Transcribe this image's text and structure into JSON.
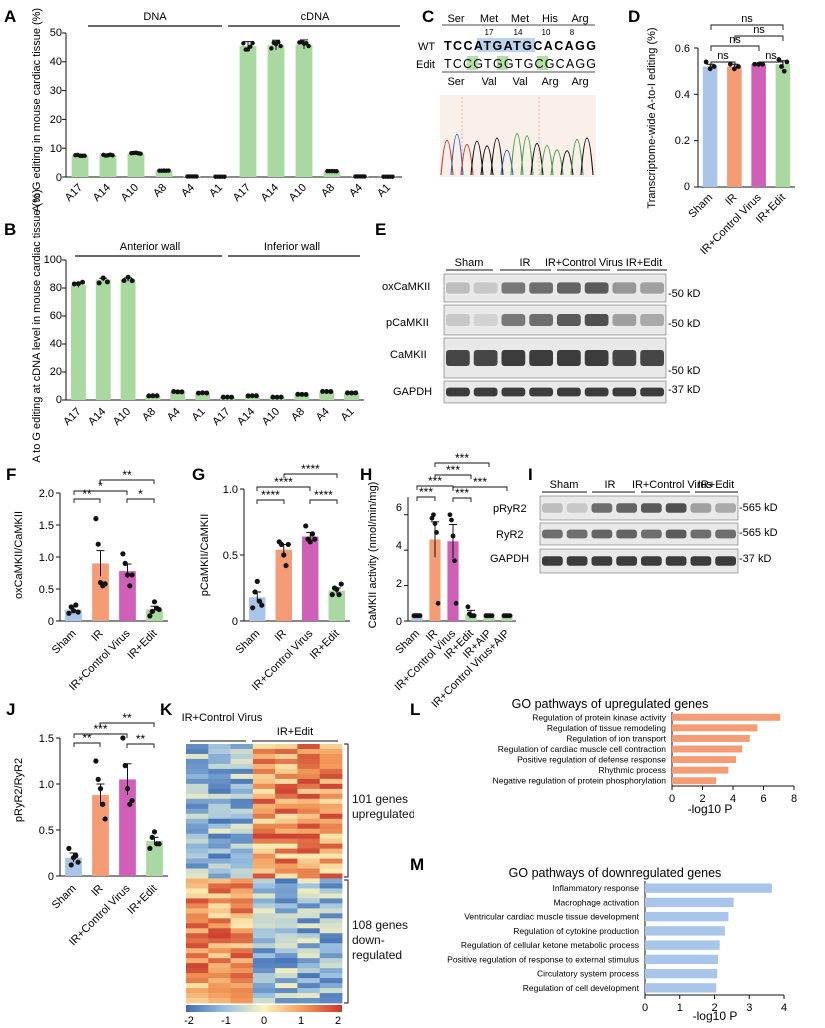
{
  "panel_letters": {
    "A": "A",
    "B": "B",
    "C": "C",
    "D": "D",
    "E": "E",
    "F": "F",
    "G": "G",
    "H": "H",
    "I": "I",
    "J": "J",
    "K": "K",
    "L": "L",
    "M": "M"
  },
  "colors": {
    "green": "#a9d9a0",
    "orange": "#f39c76",
    "purple": "#cf5fb7",
    "blue": "#a9c5ea",
    "red_heat": "#c8372d",
    "blue_heat": "#3f6db3"
  },
  "panel_A": {
    "ylabel": "A to G editing in mouse cardiac tissue (%)",
    "group_labels": [
      "DNA",
      "cDNA"
    ],
    "yticks": [
      "0",
      "10",
      "20",
      "30",
      "40",
      "50"
    ]
  },
  "panel_B": {
    "ylabel": "A to G editing at cDNA level in mouse cardiac tissue (%)",
    "group_labels": [
      "Anterior wall",
      "Inferior wall"
    ],
    "yticks": [
      "0",
      "20",
      "40",
      "60",
      "80",
      "100"
    ]
  },
  "panel_C": {
    "top_aa": [
      "Ser",
      "Met",
      "Met",
      "His",
      "Arg"
    ],
    "top_nums": [
      "17",
      "14",
      "10",
      "8"
    ],
    "wt_label": "WT",
    "wt_seq": "TCCATGATGCACAGG",
    "edit_label": "Edit",
    "edit_seq": "TCCGTGGTGCGCAGG",
    "bottom_aa": [
      "Ser",
      "Val",
      "Val",
      "Arg",
      "Arg"
    ]
  },
  "panel_D": {
    "ylabel": "Transcriptome-wide A-to-I editing (%)",
    "yticks": [
      "0",
      "0.2",
      "0.4",
      "0.6"
    ],
    "ns": "ns"
  },
  "panel_E": {
    "groups": [
      "Sham",
      "IR",
      "IR+Control Virus",
      "IR+Edit"
    ],
    "rows": [
      "oxCaMKII",
      "pCaMKII",
      "CaMKII",
      "GAPDH"
    ],
    "markers": [
      "-50 kD",
      "-50 kD",
      "-50 kD",
      "-37 kD"
    ]
  },
  "panel_F": {
    "ylabel": "oxCaMKII/CaMKII",
    "yticks": [
      "0",
      "0.5",
      "1.0",
      "1.5",
      "2.0"
    ]
  },
  "panel_G": {
    "ylabel": "pCaMKII/CaMKII",
    "yticks": [
      "0",
      "0.5",
      "1.0"
    ]
  },
  "panel_H": {
    "ylabel": "CaMKII activity (nmol/min/mg)",
    "yticks": [
      "0",
      "2",
      "4",
      "6"
    ],
    "cats": [
      "Sham",
      "IR",
      "IR+Control Virus",
      "IR+Edit",
      "IR+AIP",
      "IR+Control Virus+AIP"
    ]
  },
  "panel_I": {
    "groups": [
      "Sham",
      "IR",
      "IR+Control Virus",
      "IR+Edit"
    ],
    "rows": [
      "pRyR2",
      "RyR2",
      "GAPDH"
    ],
    "markers": [
      "-565 kD",
      "-565 kD",
      "-37 kD"
    ]
  },
  "panel_J": {
    "ylabel": "pRyR2/RyR2",
    "yticks": [
      "0",
      "0.5",
      "1.0",
      "1.5"
    ]
  },
  "panel_K": {
    "col_groups": [
      "IR+Control Virus",
      "IR+Edit"
    ],
    "up_label": "101 genes upregulated",
    "down_label": "108 genes down-regulated",
    "scale_ticks": [
      "-2",
      "-1",
      "0",
      "1",
      "2"
    ]
  },
  "panel_L": {
    "title": "GO pathways of upregulated genes",
    "xlabel": "-log10 P",
    "xticks": [
      "0",
      "2",
      "4",
      "6",
      "8"
    ]
  },
  "panel_M": {
    "title": "GO pathways of downregulated genes",
    "xlabel": "-log10 P",
    "xticks": [
      "0",
      "1",
      "2",
      "3",
      "4"
    ]
  },
  "chart_data": [
    {
      "id": "A",
      "type": "bar",
      "categories": [
        "A17",
        "A14",
        "A10",
        "A8",
        "A4",
        "A1",
        "A17",
        "A14",
        "A10",
        "A8",
        "A4",
        "A1"
      ],
      "values": [
        7.5,
        7.6,
        8.2,
        2.2,
        0.2,
        0.1,
        45.5,
        45.8,
        46.0,
        2.0,
        0.2,
        0.1
      ],
      "ylim": [
        0,
        50
      ]
    },
    {
      "id": "B",
      "type": "bar",
      "categories": [
        "A17",
        "A14",
        "A10",
        "A8",
        "A4",
        "A1",
        "A17",
        "A14",
        "A10",
        "A8",
        "A4",
        "A1"
      ],
      "values": [
        82,
        86,
        86,
        3,
        6,
        5,
        2,
        3,
        2,
        4,
        6,
        5
      ],
      "ylim": [
        0,
        100
      ]
    },
    {
      "id": "D",
      "type": "bar",
      "categories": [
        "Sham",
        "IR",
        "IR+Control Virus",
        "IR+Edit"
      ],
      "values": [
        0.52,
        0.52,
        0.53,
        0.53
      ],
      "ylim": [
        0,
        0.6
      ]
    },
    {
      "id": "F",
      "type": "bar",
      "categories": [
        "Sham",
        "IR",
        "IR+Control Virus",
        "IR+Edit"
      ],
      "values": [
        0.18,
        0.9,
        0.78,
        0.18
      ],
      "ylim": [
        0,
        2.0
      ]
    },
    {
      "id": "G",
      "type": "bar",
      "categories": [
        "Sham",
        "IR",
        "IR+Control Virus",
        "IR+Edit"
      ],
      "values": [
        0.18,
        0.54,
        0.64,
        0.23
      ],
      "ylim": [
        0,
        1.0
      ]
    },
    {
      "id": "H",
      "type": "bar",
      "categories": [
        "Sham",
        "IR",
        "IR+Control Virus",
        "IR+Edit",
        "IR+AIP",
        "IR+Control Virus+AIP"
      ],
      "values": [
        0.3,
        4.6,
        4.5,
        0.4,
        0.3,
        0.3
      ],
      "ylim": [
        0,
        7
      ]
    },
    {
      "id": "J",
      "type": "bar",
      "categories": [
        "Sham",
        "IR",
        "IR+Control Virus",
        "IR+Edit"
      ],
      "values": [
        0.2,
        0.88,
        1.05,
        0.38
      ],
      "ylim": [
        0,
        1.5
      ]
    },
    {
      "id": "L",
      "type": "bar",
      "orientation": "horizontal",
      "categories": [
        "Regulation of protein kinase activity",
        "Regulation of tissue remodeling",
        "Regulation of ion transport",
        "Regulation of cardiac muscle cell contraction",
        "Positive regulation of defense response",
        "Rhythmic process",
        "Negative regulation of protein phosphorylation"
      ],
      "values": [
        7.1,
        5.6,
        5.1,
        4.6,
        4.2,
        3.7,
        2.9
      ],
      "xlim": [
        0,
        8
      ]
    },
    {
      "id": "M",
      "type": "bar",
      "orientation": "horizontal",
      "categories": [
        "Inflammatory response",
        "Macrophage activation",
        "Ventricular cardiac muscle tissue development",
        "Regulation of cytokine production",
        "Regulation of cellular ketone metabolic process",
        "Positive regulation of response to external stimulus",
        "Circulatory system process",
        "Regulation of cell development"
      ],
      "values": [
        3.65,
        2.55,
        2.4,
        2.3,
        2.15,
        2.1,
        2.08,
        2.05
      ],
      "xlim": [
        0,
        4
      ]
    }
  ]
}
